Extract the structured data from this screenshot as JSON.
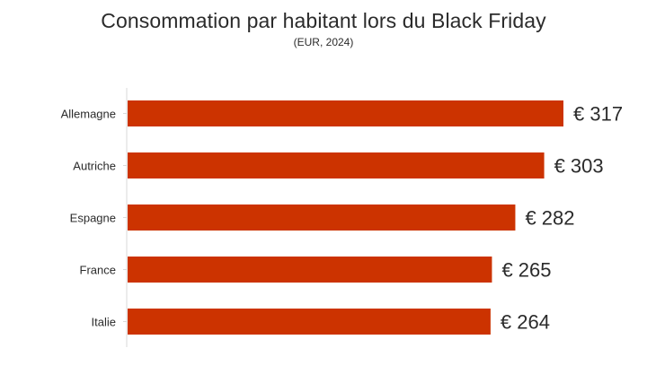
{
  "chart_data": {
    "type": "bar",
    "orientation": "horizontal",
    "title": "Consommation par habitant lors du Black Friday",
    "subtitle": "(EUR, 2024)",
    "categories": [
      "Allemagne",
      "Autriche",
      "Espagne",
      "France",
      "Italie"
    ],
    "values": [
      317,
      303,
      282,
      265,
      264
    ],
    "value_labels": [
      "€ 317",
      "€ 303",
      "€ 282",
      "€ 265",
      "€ 264"
    ],
    "xlabel": "",
    "ylabel": "",
    "xlim": [
      0,
      317
    ],
    "grid": false,
    "legend": "none",
    "bar_color": "#cc3300",
    "axis_color": "#d9d9d9",
    "text_color": "#2b2b2b"
  }
}
